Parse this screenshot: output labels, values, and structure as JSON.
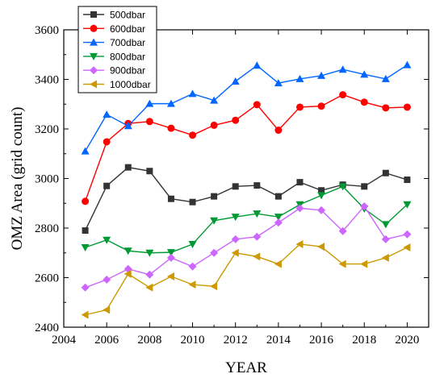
{
  "chart_data": {
    "type": "line",
    "xlabel": "YEAR",
    "ylabel": "OMZ Area (grid count)",
    "xlim": [
      2004,
      2021
    ],
    "ylim": [
      2400,
      3600
    ],
    "xticks": [
      2004,
      2006,
      2008,
      2010,
      2012,
      2014,
      2016,
      2018,
      2020
    ],
    "yticks": [
      2400,
      2600,
      2800,
      3000,
      3200,
      3400,
      3600
    ],
    "legend_position": "top-left",
    "grid": false,
    "x": [
      2005,
      2006,
      2007,
      2008,
      2009,
      2010,
      2011,
      2012,
      2013,
      2014,
      2015,
      2016,
      2017,
      2018,
      2019,
      2020
    ],
    "series": [
      {
        "name": "500dbar",
        "color": "#333333",
        "marker": "square",
        "values": [
          2790,
          2970,
          3045,
          3030,
          2918,
          2905,
          2928,
          2968,
          2972,
          2928,
          2985,
          2952,
          2975,
          2968,
          3022,
          2995
        ]
      },
      {
        "name": "600dbar",
        "color": "#ff0000",
        "marker": "circle",
        "values": [
          2908,
          3148,
          3222,
          3230,
          3203,
          3175,
          3215,
          3235,
          3298,
          3195,
          3288,
          3292,
          3338,
          3308,
          3285,
          3288
        ]
      },
      {
        "name": "700dbar",
        "color": "#0066ff",
        "marker": "triangle-up",
        "values": [
          3110,
          3258,
          3212,
          3302,
          3302,
          3342,
          3315,
          3392,
          3456,
          3385,
          3402,
          3415,
          3440,
          3420,
          3402,
          3458
        ]
      },
      {
        "name": "800dbar",
        "color": "#009933",
        "marker": "triangle-down",
        "values": [
          2722,
          2752,
          2708,
          2700,
          2702,
          2735,
          2830,
          2845,
          2858,
          2845,
          2895,
          2932,
          2968,
          2878,
          2815,
          2895
        ]
      },
      {
        "name": "900dbar",
        "color": "#cc66ff",
        "marker": "diamond",
        "values": [
          2560,
          2592,
          2635,
          2612,
          2680,
          2645,
          2700,
          2755,
          2765,
          2822,
          2880,
          2872,
          2788,
          2888,
          2755,
          2775
        ]
      },
      {
        "name": "1000dbar",
        "color": "#cc9900",
        "marker": "triangle-left",
        "values": [
          2450,
          2470,
          2615,
          2560,
          2605,
          2572,
          2565,
          2700,
          2685,
          2655,
          2735,
          2725,
          2655,
          2655,
          2680,
          2722
        ]
      }
    ]
  }
}
